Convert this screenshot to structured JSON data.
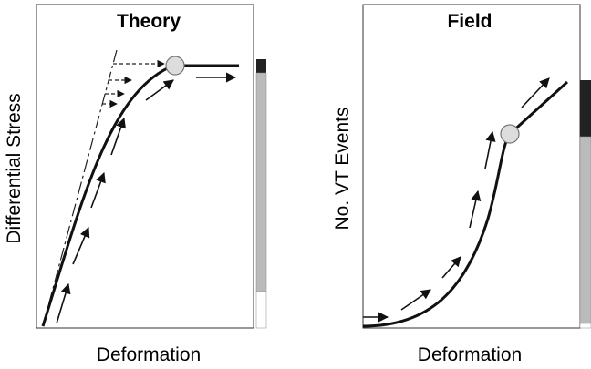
{
  "panels": [
    {
      "title": "Theory",
      "y_label": "Differential Stress",
      "x_label": "Deformation"
    },
    {
      "title": "Field",
      "y_label": "No. VT Events",
      "x_label": "Deformation"
    }
  ]
}
